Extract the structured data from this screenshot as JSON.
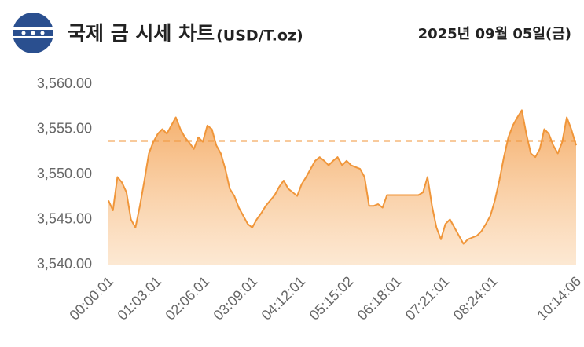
{
  "chart_data": {
    "type": "area",
    "title": "국제 금 시세 차트",
    "unit": "(USD/T.oz)",
    "date": "2025년 09월 05일(금)",
    "color": "#f0963a",
    "reference_line": {
      "value": 3553.7,
      "color": "#f0963a"
    },
    "xlim": [
      1,
      36846
    ],
    "xticks": [
      {
        "value": 1,
        "label": "00:00:01"
      },
      {
        "value": 3781,
        "label": "01:03:01"
      },
      {
        "value": 7561,
        "label": "02:06:01"
      },
      {
        "value": 11341,
        "label": "03:09:01"
      },
      {
        "value": 15121,
        "label": "04:12:01"
      },
      {
        "value": 18902,
        "label": "05:15:02"
      },
      {
        "value": 22681,
        "label": "06:18:01"
      },
      {
        "value": 26461,
        "label": "07:21:01"
      },
      {
        "value": 30241,
        "label": "08:24:01"
      },
      {
        "value": 36846,
        "label": "10:14:06"
      }
    ],
    "ylim": [
      3540,
      3560
    ],
    "yticks": [
      {
        "value": 3540,
        "label": "3,540.00"
      },
      {
        "value": 3545,
        "label": "3,545.00"
      },
      {
        "value": 3550,
        "label": "3,550.00"
      },
      {
        "value": 3555,
        "label": "3,555.00"
      },
      {
        "value": 3560,
        "label": "3,560.00"
      }
    ],
    "x": [
      1,
      355,
      709,
      1063,
      1417,
      1771,
      2125,
      2479,
      2833,
      3187,
      3541,
      3895,
      4249,
      4603,
      4957,
      5311,
      5665,
      6019,
      6373,
      6727,
      7081,
      7435,
      7789,
      8143,
      8497,
      8851,
      9205,
      9559,
      9913,
      10267,
      10621,
      10975,
      11329,
      11683,
      12037,
      12391,
      12745,
      13099,
      13453,
      13807,
      14161,
      14515,
      14869,
      15223,
      15577,
      15931,
      16285,
      16639,
      16993,
      17347,
      17701,
      18055,
      18409,
      18763,
      19117,
      19471,
      19825,
      20179,
      20533,
      20887,
      21241,
      21595,
      21949,
      22303,
      22657,
      23011,
      23365,
      23719,
      24073,
      24427,
      24781,
      25135,
      25489,
      25843,
      26197,
      26551,
      26905,
      27259,
      27613,
      27967,
      28321,
      28675,
      29029,
      29383,
      29737,
      30091,
      30445,
      30799,
      31153,
      31507,
      31861,
      32215,
      32569,
      32923,
      33277,
      33631,
      33985,
      34339,
      34693,
      35047,
      35401,
      35755,
      36109,
      36463,
      36846
    ],
    "values": [
      3547.1,
      3546.0,
      3549.7,
      3549.1,
      3548.0,
      3545.0,
      3544.1,
      3546.5,
      3549.3,
      3552.3,
      3553.6,
      3554.5,
      3555.0,
      3554.5,
      3555.4,
      3556.3,
      3555.0,
      3554.1,
      3553.5,
      3552.8,
      3554.1,
      3553.6,
      3555.4,
      3555.0,
      3553.2,
      3552.3,
      3550.6,
      3548.4,
      3547.6,
      3546.3,
      3545.4,
      3544.5,
      3544.1,
      3545.0,
      3545.7,
      3546.5,
      3547.1,
      3547.7,
      3548.6,
      3549.3,
      3548.4,
      3548.0,
      3547.6,
      3548.9,
      3549.7,
      3550.6,
      3551.5,
      3551.9,
      3551.5,
      3551.0,
      3551.5,
      3551.9,
      3551.0,
      3551.5,
      3551.0,
      3550.8,
      3550.6,
      3549.7,
      3546.5,
      3546.5,
      3546.7,
      3546.3,
      3547.7,
      3547.7,
      3547.7,
      3547.7,
      3547.7,
      3547.7,
      3547.7,
      3547.7,
      3548.0,
      3549.7,
      3546.5,
      3544.1,
      3542.8,
      3544.5,
      3545.0,
      3544.1,
      3543.2,
      3542.3,
      3542.8,
      3543.0,
      3543.2,
      3543.7,
      3544.5,
      3545.4,
      3547.1,
      3549.3,
      3551.9,
      3554.1,
      3555.4,
      3556.3,
      3557.1,
      3554.5,
      3552.3,
      3551.9,
      3552.8,
      3555.0,
      3554.5,
      3553.2,
      3552.3,
      3553.6,
      3556.3,
      3555.0,
      3553.2
    ]
  }
}
